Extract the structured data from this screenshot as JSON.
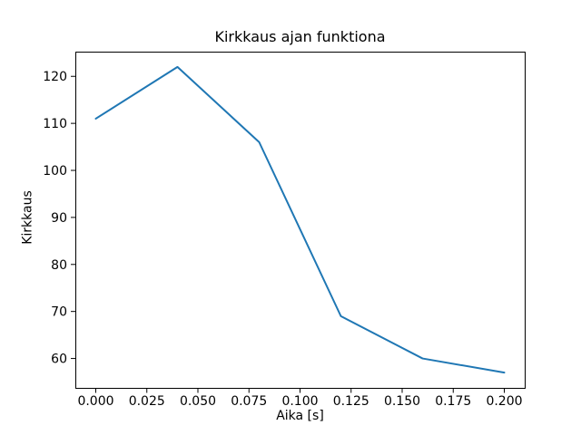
{
  "chart_data": {
    "type": "line",
    "title": "Kirkkaus ajan funktiona",
    "xlabel": "Aika [s]",
    "ylabel": "Kirkkaus",
    "x": [
      0.0,
      0.04,
      0.08,
      0.12,
      0.16,
      0.2
    ],
    "y": [
      111,
      122,
      106,
      69,
      60,
      57
    ],
    "series": [
      {
        "name": "Kirkkaus",
        "x": [
          0.0,
          0.04,
          0.08,
          0.12,
          0.16,
          0.2
        ],
        "values": [
          111,
          122,
          106,
          69,
          60,
          57
        ]
      }
    ],
    "xlim": [
      -0.01,
      0.21
    ],
    "ylim": [
      53.75,
      125.25
    ],
    "xticks": {
      "values": [
        0.0,
        0.025,
        0.05,
        0.075,
        0.1,
        0.125,
        0.15,
        0.175,
        0.2
      ],
      "labels": [
        "0.000",
        "0.025",
        "0.050",
        "0.075",
        "0.100",
        "0.125",
        "0.150",
        "0.175",
        "0.200"
      ]
    },
    "yticks": {
      "values": [
        60,
        70,
        80,
        90,
        100,
        110,
        120
      ],
      "labels": [
        "60",
        "70",
        "80",
        "90",
        "100",
        "110",
        "120"
      ]
    },
    "grid": false,
    "legend": null,
    "line_color": "#1f77b4",
    "line_width": 2,
    "axis_color": "#000000",
    "background_color": "#ffffff"
  }
}
